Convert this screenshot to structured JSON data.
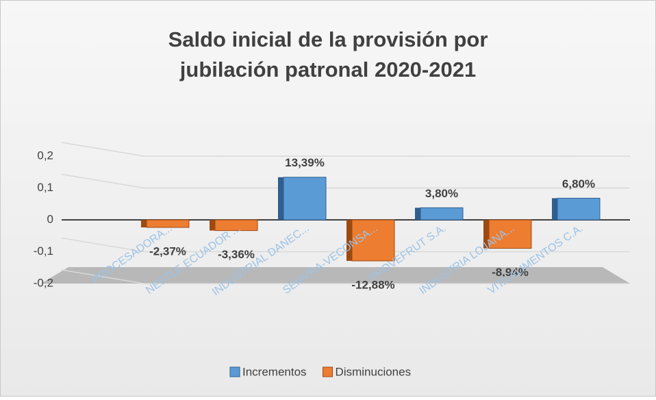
{
  "chart_data": {
    "type": "bar3d",
    "title": "Saldo inicial de la provisión por jubilación patronal 2020-2021",
    "categories": [
      "PROCESADORA...",
      "NESTLE ECUADOR ...",
      "INDUSTRIAL DANEC...",
      "SEMVRA-VECONSA...",
      "PROVEFRUT S.A.",
      "INDUSTRIA LOJANA...",
      "VITA ALIMENTOS C.A."
    ],
    "series": [
      {
        "name": "Incrementos",
        "color": "#5b9bd5",
        "values": [
          null,
          null,
          0.1339,
          null,
          0.038,
          null,
          0.068
        ],
        "value_labels": [
          null,
          null,
          "13,39%",
          null,
          "3,80%",
          null,
          "6,80%"
        ]
      },
      {
        "name": "Disminuciones",
        "color": "#ed7d31",
        "values": [
          -0.0237,
          -0.0336,
          null,
          -0.1288,
          null,
          -0.0894,
          null
        ],
        "value_labels": [
          "-2,37%",
          "-3,36%",
          null,
          "-12,88%",
          null,
          "-8,94%",
          null
        ]
      }
    ],
    "ylim": [
      -0.2,
      0.2
    ],
    "yticks": [
      {
        "value": 0.2,
        "label": "0,2"
      },
      {
        "value": 0.1,
        "label": "0,1"
      },
      0,
      {
        "value": -0.1,
        "label": "-0,1"
      },
      {
        "value": -0.2,
        "label": "-0,2"
      }
    ],
    "grid": true,
    "legend": "bottom"
  }
}
